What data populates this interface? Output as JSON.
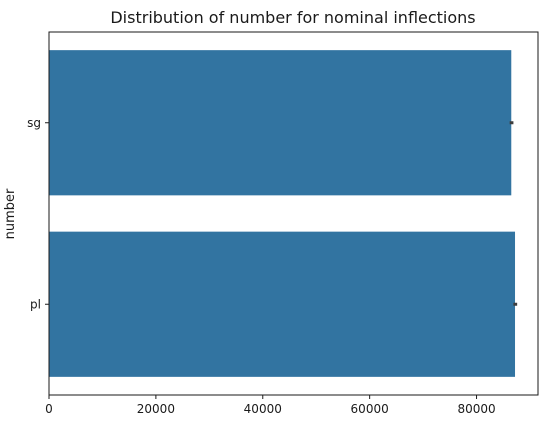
{
  "chart_data": {
    "type": "bar",
    "orientation": "horizontal",
    "title": "Distribution of number for nominal inflections",
    "xlabel": "",
    "ylabel": "number",
    "categories": [
      "sg",
      "pl"
    ],
    "values": [
      86500,
      87200
    ],
    "error_bars": [
      {
        "low": 86200,
        "high": 86900
      },
      {
        "low": 86900,
        "high": 87600
      }
    ],
    "xlim": [
      0,
      91500
    ],
    "xticks": [
      0,
      20000,
      40000,
      60000,
      80000
    ],
    "xtick_labels": [
      "0",
      "20000",
      "40000",
      "60000",
      "80000"
    ],
    "bar_color": "#3274a1",
    "error_color": "#3d3d3d",
    "grid": false,
    "legend": false
  }
}
